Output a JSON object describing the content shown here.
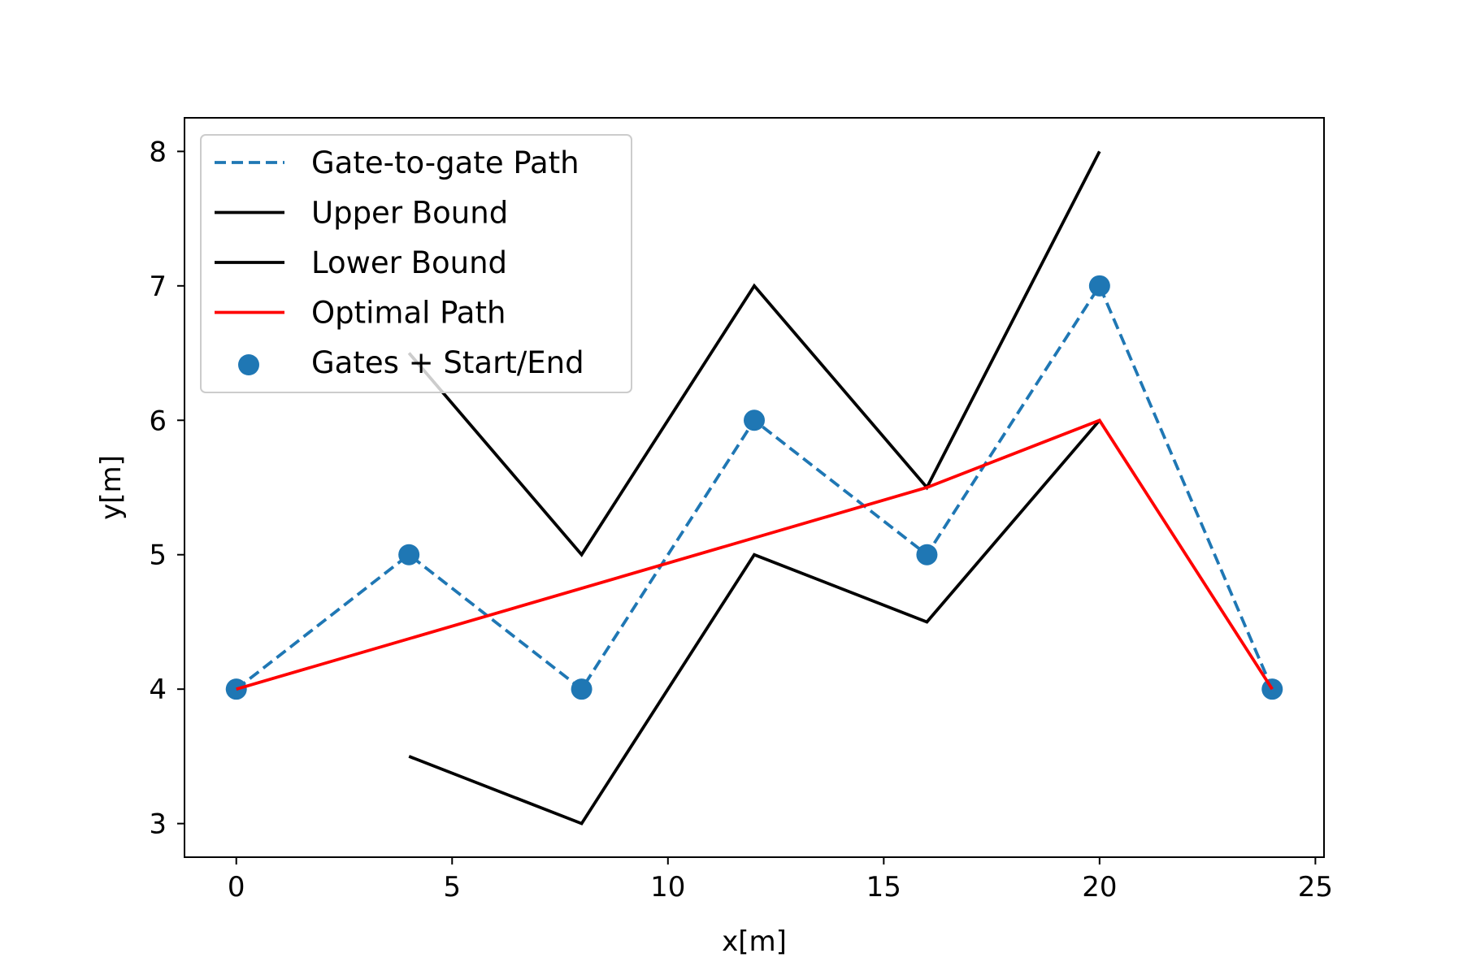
{
  "chart_data": {
    "type": "line",
    "title": "",
    "xlabel": "x[m]",
    "ylabel": "y[m]",
    "xlim": [
      -1.2,
      25.2
    ],
    "ylim": [
      2.75,
      8.25
    ],
    "xticks": [
      0,
      5,
      10,
      15,
      20,
      25
    ],
    "yticks": [
      3,
      4,
      5,
      6,
      7,
      8
    ],
    "grid": false,
    "legend_position": "top-left",
    "series": [
      {
        "name": "Gate-to-gate Path",
        "kind": "line",
        "style": "dashed",
        "color": "#1f77b4",
        "x": [
          0,
          4,
          8,
          12,
          16,
          20,
          24
        ],
        "y": [
          4,
          5,
          4,
          6,
          5,
          7,
          4
        ]
      },
      {
        "name": "Upper Bound",
        "kind": "line",
        "style": "solid",
        "color": "#000000",
        "x": [
          4,
          8,
          12,
          16,
          20
        ],
        "y": [
          6.5,
          5,
          7,
          5.5,
          8
        ]
      },
      {
        "name": "Lower Bound",
        "kind": "line",
        "style": "solid",
        "color": "#000000",
        "x": [
          4,
          8,
          12,
          16,
          20
        ],
        "y": [
          3.5,
          3,
          5,
          4.5,
          6
        ]
      },
      {
        "name": "Optimal Path",
        "kind": "line",
        "style": "solid",
        "color": "#ff0000",
        "x": [
          0,
          16,
          20,
          24
        ],
        "y": [
          4,
          5.5,
          6,
          4
        ]
      },
      {
        "name": "Gates + Start/End",
        "kind": "scatter",
        "color": "#1f77b4",
        "x": [
          0,
          4,
          8,
          12,
          16,
          20,
          24
        ],
        "y": [
          4,
          5,
          4,
          6,
          5,
          7,
          4
        ]
      }
    ]
  }
}
